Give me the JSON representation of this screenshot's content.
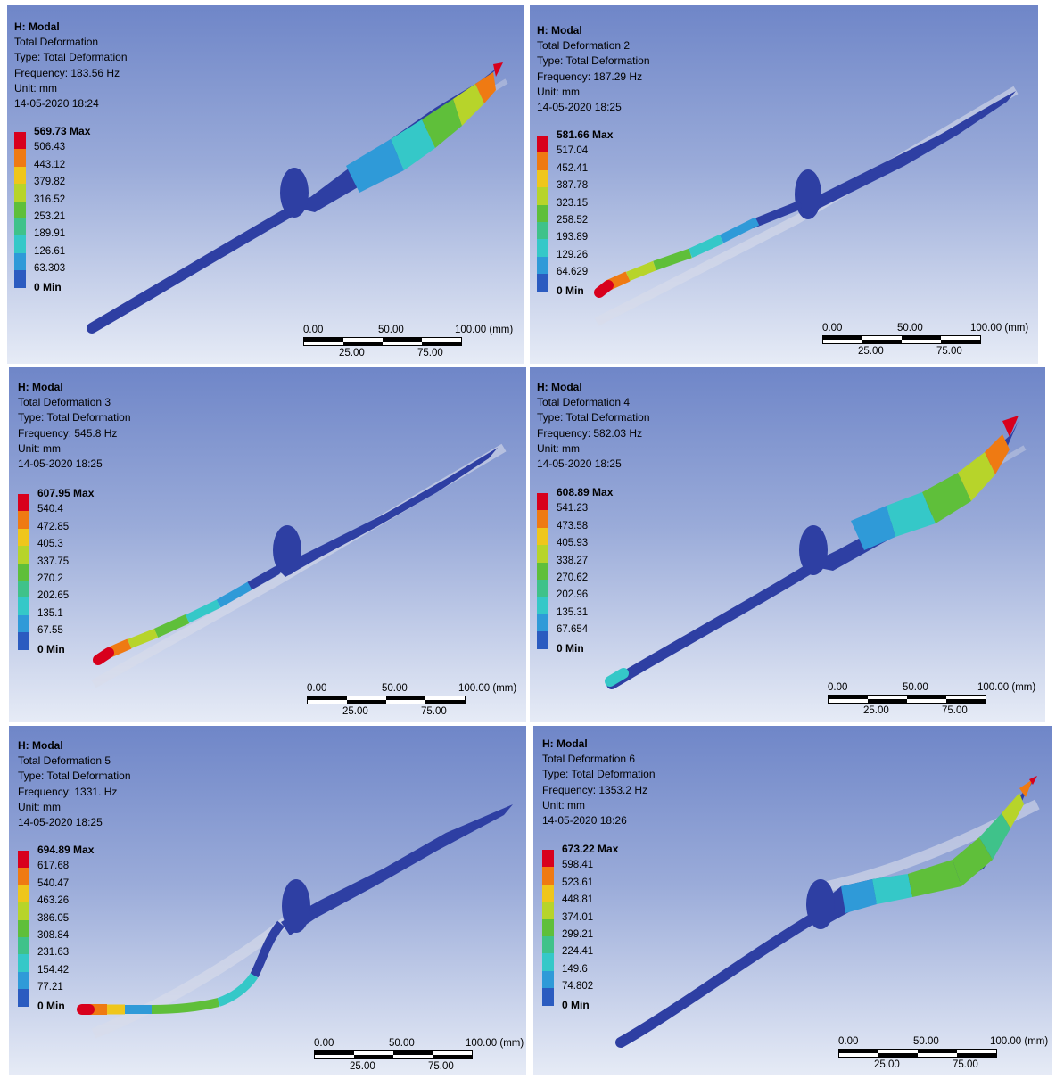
{
  "legend_colors": [
    "#d8001c",
    "#ef7a12",
    "#efc61b",
    "#b7d42a",
    "#5fbf3a",
    "#3fc28a",
    "#35c8c8",
    "#2f9ad8",
    "#2b5bc0",
    "#2d3c9a"
  ],
  "blade_color": "#2e3fa3",
  "panels": [
    {
      "solver": "H: Modal",
      "title": "Total Deformation",
      "type": "Type: Total Deformation",
      "frequency": "Frequency: 183.56 Hz",
      "unit": "Unit: mm",
      "date": "14-05-2020 18:24",
      "legend": [
        "569.73 Max",
        "506.43",
        "443.12",
        "379.82",
        "316.52",
        "253.21",
        "189.91",
        "126.61",
        "63.303",
        "0 Min"
      ],
      "scale": {
        "t0": "0.00",
        "t50": "50.00",
        "t100": "100.00 (mm)",
        "b25": "25.00",
        "b75": "75.00"
      }
    },
    {
      "solver": "H: Modal",
      "title": "Total Deformation 2",
      "type": "Type: Total Deformation",
      "frequency": "Frequency: 187.29 Hz",
      "unit": "Unit: mm",
      "date": "14-05-2020 18:25",
      "legend": [
        "581.66 Max",
        "517.04",
        "452.41",
        "387.78",
        "323.15",
        "258.52",
        "193.89",
        "129.26",
        "64.629",
        "0 Min"
      ],
      "scale": {
        "t0": "0.00",
        "t50": "50.00",
        "t100": "100.00 (mm)",
        "b25": "25.00",
        "b75": "75.00"
      }
    },
    {
      "solver": "H: Modal",
      "title": "Total Deformation 3",
      "type": "Type: Total Deformation",
      "frequency": "Frequency: 545.8 Hz",
      "unit": "Unit: mm",
      "date": "14-05-2020 18:25",
      "legend": [
        "607.95 Max",
        "540.4",
        "472.85",
        "405.3",
        "337.75",
        "270.2",
        "202.65",
        "135.1",
        "67.55",
        "0 Min"
      ],
      "scale": {
        "t0": "0.00",
        "t50": "50.00",
        "t100": "100.00 (mm)",
        "b25": "25.00",
        "b75": "75.00"
      }
    },
    {
      "solver": "H: Modal",
      "title": "Total Deformation 4",
      "type": "Type: Total Deformation",
      "frequency": "Frequency: 582.03 Hz",
      "unit": "Unit: mm",
      "date": "14-05-2020 18:25",
      "legend": [
        "608.89 Max",
        "541.23",
        "473.58",
        "405.93",
        "338.27",
        "270.62",
        "202.96",
        "135.31",
        "67.654",
        "0 Min"
      ],
      "scale": {
        "t0": "0.00",
        "t50": "50.00",
        "t100": "100.00 (mm)",
        "b25": "25.00",
        "b75": "75.00"
      }
    },
    {
      "solver": "H: Modal",
      "title": "Total Deformation 5",
      "type": "Type: Total Deformation",
      "frequency": "Frequency: 1331. Hz",
      "unit": "Unit: mm",
      "date": "14-05-2020 18:25",
      "legend": [
        "694.89 Max",
        "617.68",
        "540.47",
        "463.26",
        "386.05",
        "308.84",
        "231.63",
        "154.42",
        "77.21",
        "0 Min"
      ],
      "scale": {
        "t0": "0.00",
        "t50": "50.00",
        "t100": "100.00 (mm)",
        "b25": "25.00",
        "b75": "75.00"
      }
    },
    {
      "solver": "H: Modal",
      "title": "Total Deformation 6",
      "type": "Type: Total Deformation",
      "frequency": "Frequency: 1353.2 Hz",
      "unit": "Unit: mm",
      "date": "14-05-2020 18:26",
      "legend": [
        "673.22 Max",
        "598.41",
        "523.61",
        "448.81",
        "374.01",
        "299.21",
        "224.41",
        "149.6",
        "74.802",
        "0 Min"
      ],
      "scale": {
        "t0": "0.00",
        "t50": "50.00",
        "t100": "100.00 (mm)",
        "b25": "25.00",
        "b75": "75.00"
      }
    }
  ]
}
